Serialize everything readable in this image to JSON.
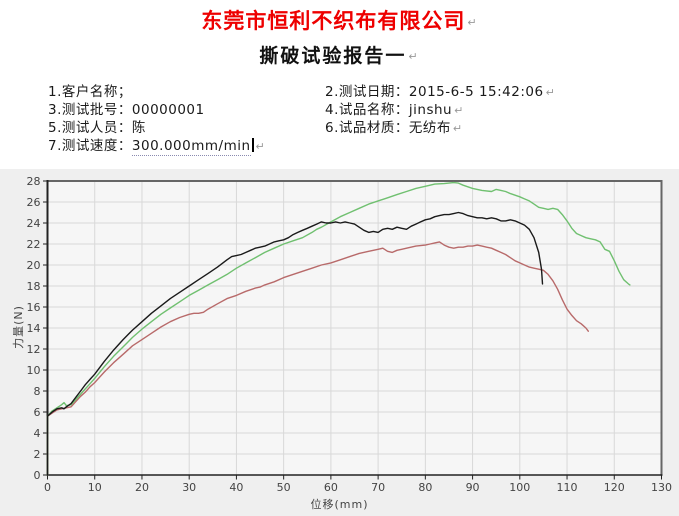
{
  "header": {
    "company_title": "东莞市恒利不织布有限公司",
    "report_title": "撕破试验报告一",
    "paragraph_mark": "↵",
    "title_color": "#ee0000"
  },
  "fields": {
    "left": [
      {
        "label": "1.客户名称；",
        "value": ""
      },
      {
        "label": "3.测试批号：",
        "value": "00000001"
      },
      {
        "label": "5.测试人员：",
        "value": "陈"
      },
      {
        "label": "7.测试速度：",
        "value": "300.000mm/min"
      }
    ],
    "right": [
      {
        "label": "2.测试日期：",
        "value": "2015-6-5 15:42:06"
      },
      {
        "label": "4.试品名称：",
        "value": "jinshu"
      },
      {
        "label": "6.试品材质：",
        "value": "无纺布"
      }
    ]
  },
  "chart_data": {
    "type": "line",
    "title": "",
    "xlabel": "位移(mm)",
    "ylabel": "力量(N)",
    "xlim": [
      0,
      130
    ],
    "ylim": [
      0,
      28
    ],
    "x_ticks": [
      0,
      10,
      20,
      30,
      40,
      50,
      60,
      70,
      80,
      90,
      100,
      110,
      120,
      130
    ],
    "y_ticks": [
      0,
      2,
      4,
      6,
      8,
      10,
      12,
      14,
      16,
      18,
      20,
      22,
      24,
      26,
      28
    ],
    "grid": true,
    "legend": "none",
    "colors": {
      "plot_bg": "#f6f6f6",
      "outer_bg": "#efefef",
      "grid": "#d8d8d8",
      "frame": "#666666",
      "axis": "#222222",
      "tick_text": "#444444"
    },
    "series": [
      {
        "name": "red",
        "color": "#b86a6a",
        "points": [
          [
            0,
            0
          ],
          [
            0,
            5.6
          ],
          [
            1,
            5.9
          ],
          [
            2,
            6.2
          ],
          [
            3,
            6.3
          ],
          [
            4,
            6.4
          ],
          [
            5,
            6.5
          ],
          [
            6,
            7.0
          ],
          [
            7,
            7.5
          ],
          [
            8,
            7.9
          ],
          [
            9,
            8.4
          ],
          [
            10,
            8.8
          ],
          [
            12,
            9.8
          ],
          [
            14,
            10.7
          ],
          [
            16,
            11.5
          ],
          [
            18,
            12.3
          ],
          [
            20,
            12.9
          ],
          [
            22,
            13.5
          ],
          [
            24,
            14.1
          ],
          [
            26,
            14.6
          ],
          [
            28,
            15.0
          ],
          [
            30,
            15.3
          ],
          [
            31,
            15.4
          ],
          [
            32,
            15.4
          ],
          [
            33,
            15.5
          ],
          [
            34,
            15.8
          ],
          [
            36,
            16.3
          ],
          [
            38,
            16.8
          ],
          [
            40,
            17.1
          ],
          [
            42,
            17.5
          ],
          [
            44,
            17.8
          ],
          [
            45,
            17.9
          ],
          [
            46,
            18.1
          ],
          [
            48,
            18.4
          ],
          [
            50,
            18.8
          ],
          [
            52,
            19.1
          ],
          [
            54,
            19.4
          ],
          [
            56,
            19.7
          ],
          [
            58,
            20.0
          ],
          [
            60,
            20.2
          ],
          [
            62,
            20.5
          ],
          [
            64,
            20.8
          ],
          [
            66,
            21.1
          ],
          [
            68,
            21.3
          ],
          [
            70,
            21.5
          ],
          [
            71,
            21.6
          ],
          [
            72,
            21.3
          ],
          [
            73,
            21.2
          ],
          [
            74,
            21.4
          ],
          [
            75,
            21.5
          ],
          [
            76,
            21.6
          ],
          [
            78,
            21.8
          ],
          [
            80,
            21.9
          ],
          [
            81,
            22.0
          ],
          [
            82,
            22.1
          ],
          [
            83,
            22.2
          ],
          [
            84,
            21.9
          ],
          [
            85,
            21.7
          ],
          [
            86,
            21.6
          ],
          [
            87,
            21.7
          ],
          [
            88,
            21.7
          ],
          [
            89,
            21.8
          ],
          [
            90,
            21.8
          ],
          [
            91,
            21.9
          ],
          [
            92,
            21.8
          ],
          [
            93,
            21.7
          ],
          [
            94,
            21.6
          ],
          [
            95,
            21.4
          ],
          [
            96,
            21.2
          ],
          [
            97,
            21.0
          ],
          [
            98,
            20.7
          ],
          [
            99,
            20.4
          ],
          [
            100,
            20.2
          ],
          [
            101,
            20.0
          ],
          [
            102,
            19.8
          ],
          [
            103,
            19.7
          ],
          [
            104,
            19.6
          ],
          [
            105,
            19.5
          ],
          [
            106,
            19.1
          ],
          [
            107,
            18.5
          ],
          [
            108,
            17.7
          ],
          [
            109,
            16.7
          ],
          [
            110,
            15.8
          ],
          [
            111,
            15.2
          ],
          [
            112,
            14.7
          ],
          [
            113,
            14.4
          ],
          [
            114,
            14.0
          ],
          [
            114.5,
            13.7
          ]
        ]
      },
      {
        "name": "green",
        "color": "#70c070",
        "points": [
          [
            0,
            0
          ],
          [
            0,
            5.6
          ],
          [
            1,
            6.1
          ],
          [
            2,
            6.4
          ],
          [
            3,
            6.7
          ],
          [
            3.5,
            6.9
          ],
          [
            4,
            6.6
          ],
          [
            5,
            6.7
          ],
          [
            6,
            7.2
          ],
          [
            7,
            7.7
          ],
          [
            8,
            8.2
          ],
          [
            9,
            8.7
          ],
          [
            10,
            9.2
          ],
          [
            12,
            10.3
          ],
          [
            14,
            11.3
          ],
          [
            16,
            12.2
          ],
          [
            18,
            13.1
          ],
          [
            20,
            13.9
          ],
          [
            22,
            14.6
          ],
          [
            24,
            15.3
          ],
          [
            26,
            15.9
          ],
          [
            28,
            16.5
          ],
          [
            30,
            17.1
          ],
          [
            32,
            17.6
          ],
          [
            34,
            18.1
          ],
          [
            36,
            18.6
          ],
          [
            38,
            19.1
          ],
          [
            40,
            19.7
          ],
          [
            42,
            20.2
          ],
          [
            44,
            20.7
          ],
          [
            46,
            21.2
          ],
          [
            48,
            21.6
          ],
          [
            50,
            22.0
          ],
          [
            52,
            22.3
          ],
          [
            54,
            22.6
          ],
          [
            56,
            23.1
          ],
          [
            57,
            23.4
          ],
          [
            58,
            23.6
          ],
          [
            60,
            24.1
          ],
          [
            62,
            24.6
          ],
          [
            64,
            25.0
          ],
          [
            66,
            25.4
          ],
          [
            68,
            25.8
          ],
          [
            70,
            26.1
          ],
          [
            72,
            26.4
          ],
          [
            74,
            26.7
          ],
          [
            76,
            27.0
          ],
          [
            78,
            27.3
          ],
          [
            80,
            27.5
          ],
          [
            82,
            27.7
          ],
          [
            84,
            27.75
          ],
          [
            86,
            27.85
          ],
          [
            87,
            27.8
          ],
          [
            88,
            27.6
          ],
          [
            90,
            27.3
          ],
          [
            92,
            27.1
          ],
          [
            94,
            27.0
          ],
          [
            95,
            27.2
          ],
          [
            96,
            27.1
          ],
          [
            97,
            27.0
          ],
          [
            98,
            26.8
          ],
          [
            100,
            26.5
          ],
          [
            101,
            26.3
          ],
          [
            102,
            26.1
          ],
          [
            103,
            25.8
          ],
          [
            104,
            25.5
          ],
          [
            105,
            25.4
          ],
          [
            106,
            25.3
          ],
          [
            107,
            25.4
          ],
          [
            108,
            25.3
          ],
          [
            109,
            24.8
          ],
          [
            110,
            24.2
          ],
          [
            111,
            23.5
          ],
          [
            112,
            23.0
          ],
          [
            113,
            22.8
          ],
          [
            114,
            22.6
          ],
          [
            115,
            22.5
          ],
          [
            116,
            22.4
          ],
          [
            117,
            22.2
          ],
          [
            118,
            21.5
          ],
          [
            119,
            21.3
          ],
          [
            120,
            20.4
          ],
          [
            121,
            19.4
          ],
          [
            122,
            18.6
          ],
          [
            123,
            18.2
          ],
          [
            123.3,
            18.1
          ]
        ]
      },
      {
        "name": "black",
        "color": "#1a1a1a",
        "points": [
          [
            0,
            0
          ],
          [
            0,
            5.6
          ],
          [
            1,
            6.0
          ],
          [
            2,
            6.3
          ],
          [
            3,
            6.4
          ],
          [
            3.5,
            6.3
          ],
          [
            4,
            6.5
          ],
          [
            5,
            6.8
          ],
          [
            6,
            7.4
          ],
          [
            7,
            8.0
          ],
          [
            8,
            8.6
          ],
          [
            9,
            9.1
          ],
          [
            10,
            9.6
          ],
          [
            12,
            10.8
          ],
          [
            14,
            11.9
          ],
          [
            16,
            12.9
          ],
          [
            18,
            13.8
          ],
          [
            20,
            14.6
          ],
          [
            22,
            15.4
          ],
          [
            24,
            16.1
          ],
          [
            26,
            16.8
          ],
          [
            28,
            17.4
          ],
          [
            30,
            18.0
          ],
          [
            32,
            18.6
          ],
          [
            34,
            19.2
          ],
          [
            36,
            19.8
          ],
          [
            38,
            20.5
          ],
          [
            39,
            20.8
          ],
          [
            40,
            20.9
          ],
          [
            41,
            21.0
          ],
          [
            42,
            21.2
          ],
          [
            43,
            21.4
          ],
          [
            44,
            21.6
          ],
          [
            45,
            21.7
          ],
          [
            46,
            21.8
          ],
          [
            47,
            22.0
          ],
          [
            48,
            22.2
          ],
          [
            49,
            22.3
          ],
          [
            50,
            22.4
          ],
          [
            51,
            22.6
          ],
          [
            52,
            22.9
          ],
          [
            53,
            23.1
          ],
          [
            54,
            23.3
          ],
          [
            55,
            23.5
          ],
          [
            56,
            23.7
          ],
          [
            57,
            23.9
          ],
          [
            58,
            24.1
          ],
          [
            59,
            24.0
          ],
          [
            60,
            24.0
          ],
          [
            61,
            24.1
          ],
          [
            62,
            24.0
          ],
          [
            63,
            24.1
          ],
          [
            64,
            24.0
          ],
          [
            65,
            23.9
          ],
          [
            66,
            23.6
          ],
          [
            67,
            23.3
          ],
          [
            68,
            23.1
          ],
          [
            69,
            23.2
          ],
          [
            70,
            23.1
          ],
          [
            71,
            23.4
          ],
          [
            72,
            23.5
          ],
          [
            73,
            23.4
          ],
          [
            74,
            23.6
          ],
          [
            75,
            23.5
          ],
          [
            76,
            23.4
          ],
          [
            77,
            23.7
          ],
          [
            78,
            23.9
          ],
          [
            79,
            24.1
          ],
          [
            80,
            24.3
          ],
          [
            81,
            24.4
          ],
          [
            82,
            24.6
          ],
          [
            83,
            24.7
          ],
          [
            84,
            24.8
          ],
          [
            85,
            24.8
          ],
          [
            86,
            24.9
          ],
          [
            87,
            25.0
          ],
          [
            88,
            24.9
          ],
          [
            89,
            24.7
          ],
          [
            90,
            24.6
          ],
          [
            91,
            24.5
          ],
          [
            92,
            24.5
          ],
          [
            93,
            24.4
          ],
          [
            94,
            24.5
          ],
          [
            95,
            24.4
          ],
          [
            96,
            24.2
          ],
          [
            97,
            24.2
          ],
          [
            98,
            24.3
          ],
          [
            99,
            24.2
          ],
          [
            100,
            24.0
          ],
          [
            101,
            23.8
          ],
          [
            102,
            23.4
          ],
          [
            103,
            22.6
          ],
          [
            104,
            21.2
          ],
          [
            104.6,
            19.6
          ],
          [
            104.8,
            18.2
          ]
        ]
      }
    ]
  }
}
